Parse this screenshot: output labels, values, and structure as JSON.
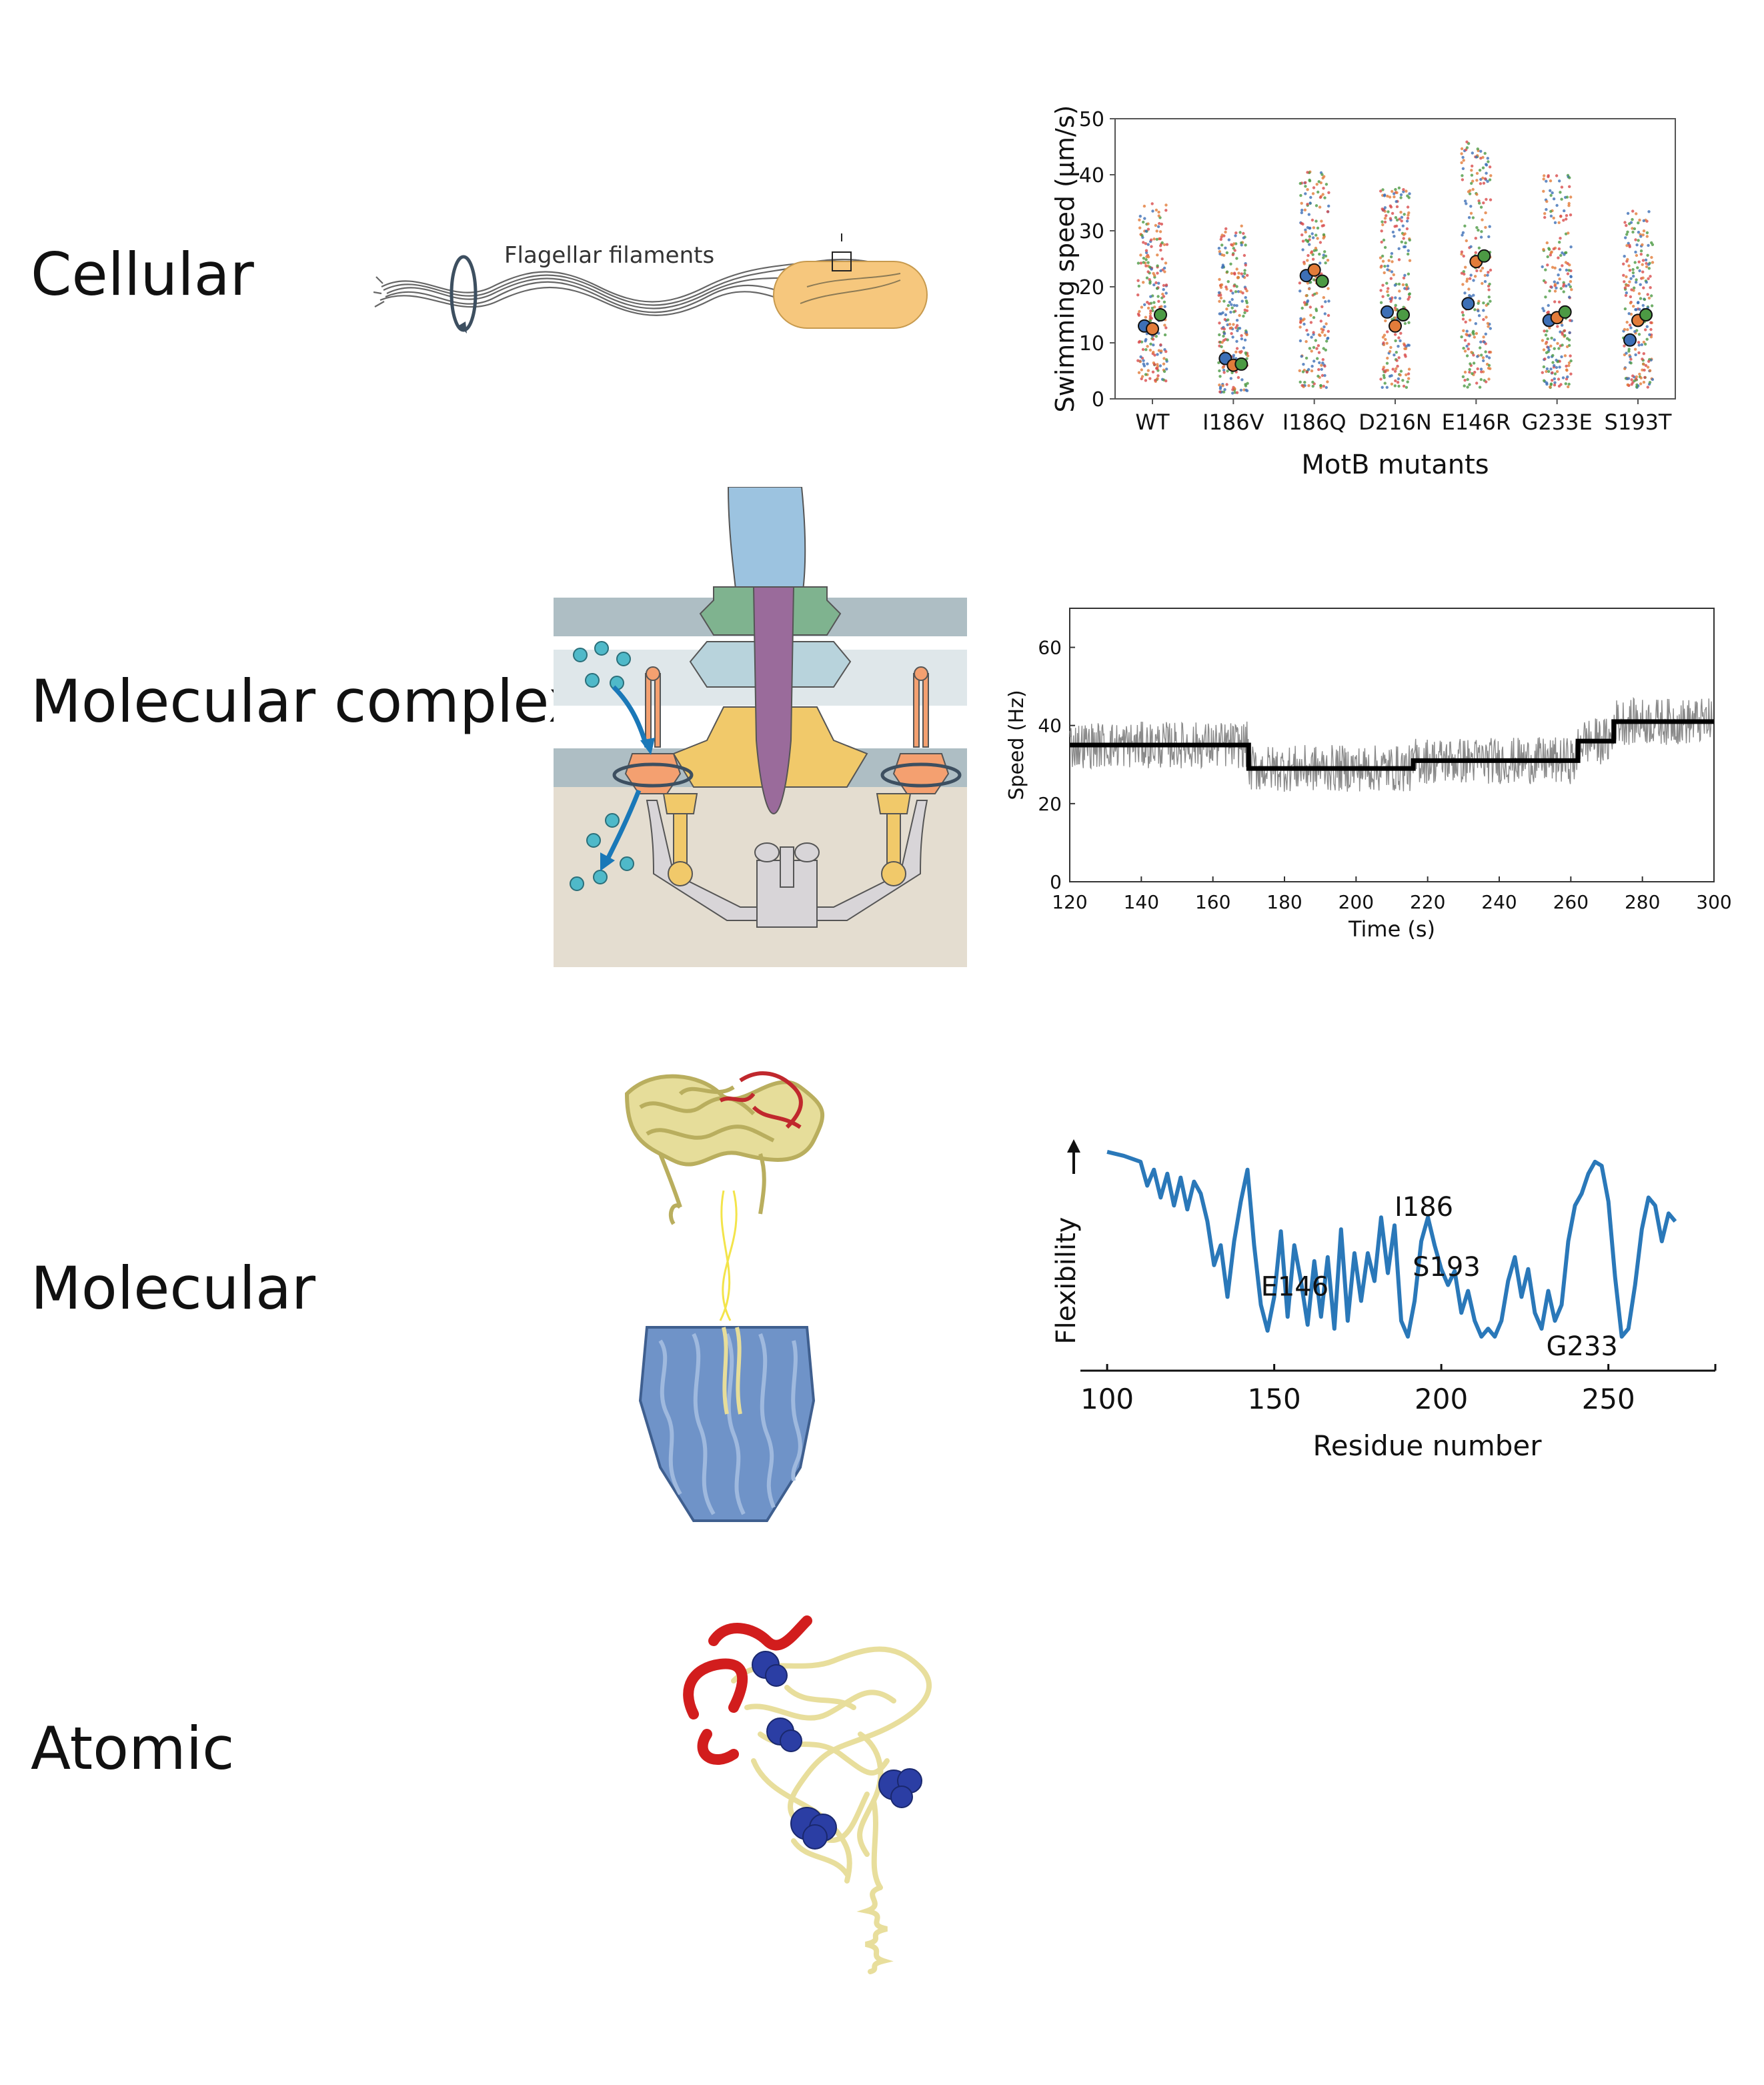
{
  "rows": {
    "cellular": "Cellular",
    "complex": "Molecular complex",
    "molecular": "Molecular",
    "atomic": "Atomic"
  },
  "cell_illustration": {
    "filament_label": "Flagellar filaments",
    "colors": {
      "cell_body": "#f6c77d",
      "filament": "#666666",
      "rotation_arrow": "#3d4f60"
    }
  },
  "motor_illustration": {
    "colors": {
      "hook": "#9cc3e0",
      "rod": "#9a6b9b",
      "l_ring": "#7fb38f",
      "p_ring": "#b8d3dc",
      "ms_ring": "#f1c96a",
      "stator": "#f4a070",
      "cytoplasm": "#e4ddd0",
      "membrane": "#aebec4",
      "ion": "#4fb9c9",
      "ion_arrow": "#1a78b8",
      "c_ring": "#d8d5d8"
    }
  },
  "structure_molecular": {
    "colors": {
      "head": "#e6dd9a",
      "head_highlight": "#c0282d",
      "linker": "#f3e44a",
      "stator_body": "#6f93c8"
    }
  },
  "structure_atomic": {
    "colors": {
      "backbone": "#e8de9c",
      "loop": "#d21d1d",
      "sphere": "#2b3ea4"
    }
  },
  "chart_data": [
    {
      "type": "scatter",
      "ylabel": "Swimming speed (μm/s)",
      "xlabel": "MotB mutants",
      "categories": [
        "WT",
        "I186V",
        "I186Q",
        "D216N",
        "E146R",
        "G233E",
        "S193T"
      ],
      "ylim": [
        0,
        50
      ],
      "yticks": [
        0,
        10,
        20,
        30,
        40,
        50
      ],
      "series": [
        {
          "color": "#3d6fb6",
          "means": [
            13,
            7.2,
            22,
            15.5,
            17,
            14,
            10.5
          ]
        },
        {
          "color": "#e27c3a",
          "means": [
            12.5,
            6,
            23,
            13,
            24.5,
            14.5,
            14
          ]
        },
        {
          "color": "#4c9a44",
          "means": [
            15,
            6.2,
            21,
            15,
            25.5,
            15.5,
            15
          ]
        }
      ],
      "spreads": [
        [
          3,
          35
        ],
        [
          1,
          31
        ],
        [
          2,
          41
        ],
        [
          2,
          38
        ],
        [
          2,
          46
        ],
        [
          2,
          40
        ],
        [
          2,
          34
        ]
      ],
      "colors": {
        "red_points": "#d84b4b"
      }
    },
    {
      "type": "line",
      "xlabel": "Time (s)",
      "ylabel": "Speed (Hz)",
      "xlim": [
        120,
        300
      ],
      "ylim": [
        0,
        70
      ],
      "xticks": [
        120,
        140,
        160,
        180,
        200,
        220,
        240,
        260,
        280,
        300
      ],
      "yticks": [
        0,
        20,
        40,
        60
      ],
      "step_levels": [
        {
          "from": 120,
          "to": 170,
          "speed": 35
        },
        {
          "from": 170,
          "to": 216,
          "speed": 29
        },
        {
          "from": 216,
          "to": 262,
          "speed": 31
        },
        {
          "from": 262,
          "to": 272,
          "speed": 36
        },
        {
          "from": 272,
          "to": 300,
          "speed": 41
        }
      ],
      "noise_amplitude": 6,
      "colors": {
        "raw": "#8a8a8a",
        "fit": "#000000"
      }
    },
    {
      "type": "line",
      "xlabel": "Residue number",
      "ylabel": "Flexibility",
      "xlim": [
        92,
        282
      ],
      "xticks": [
        100,
        150,
        200,
        250
      ],
      "x": [
        100,
        105,
        110,
        112,
        114,
        116,
        118,
        120,
        122,
        124,
        126,
        128,
        130,
        132,
        134,
        136,
        138,
        140,
        142,
        144,
        146,
        148,
        150,
        152,
        154,
        156,
        158,
        160,
        162,
        164,
        166,
        168,
        170,
        172,
        174,
        176,
        178,
        180,
        182,
        184,
        186,
        188,
        190,
        192,
        194,
        196,
        198,
        200,
        202,
        204,
        206,
        208,
        210,
        212,
        214,
        216,
        218,
        220,
        222,
        224,
        226,
        228,
        230,
        232,
        234,
        236,
        238,
        240,
        242,
        244,
        246,
        248,
        250,
        252,
        254,
        256,
        258,
        260,
        262,
        264,
        266,
        268,
        270
      ],
      "y": [
        0.95,
        0.93,
        0.9,
        0.78,
        0.86,
        0.72,
        0.84,
        0.68,
        0.82,
        0.66,
        0.8,
        0.74,
        0.6,
        0.38,
        0.48,
        0.22,
        0.5,
        0.7,
        0.86,
        0.48,
        0.18,
        0.05,
        0.22,
        0.55,
        0.12,
        0.48,
        0.3,
        0.08,
        0.4,
        0.12,
        0.42,
        0.06,
        0.56,
        0.1,
        0.44,
        0.2,
        0.44,
        0.3,
        0.62,
        0.34,
        0.58,
        0.1,
        0.02,
        0.2,
        0.5,
        0.62,
        0.48,
        0.36,
        0.28,
        0.35,
        0.14,
        0.25,
        0.1,
        0.02,
        0.06,
        0.02,
        0.1,
        0.3,
        0.42,
        0.22,
        0.36,
        0.14,
        0.06,
        0.25,
        0.1,
        0.18,
        0.5,
        0.68,
        0.74,
        0.84,
        0.9,
        0.88,
        0.7,
        0.32,
        0.02,
        0.06,
        0.28,
        0.56,
        0.72,
        0.68,
        0.5,
        0.64,
        0.6
      ],
      "annotations": [
        "E146",
        "I186",
        "S193",
        "G233"
      ],
      "colors": {
        "line": "#2a78b9"
      }
    }
  ]
}
